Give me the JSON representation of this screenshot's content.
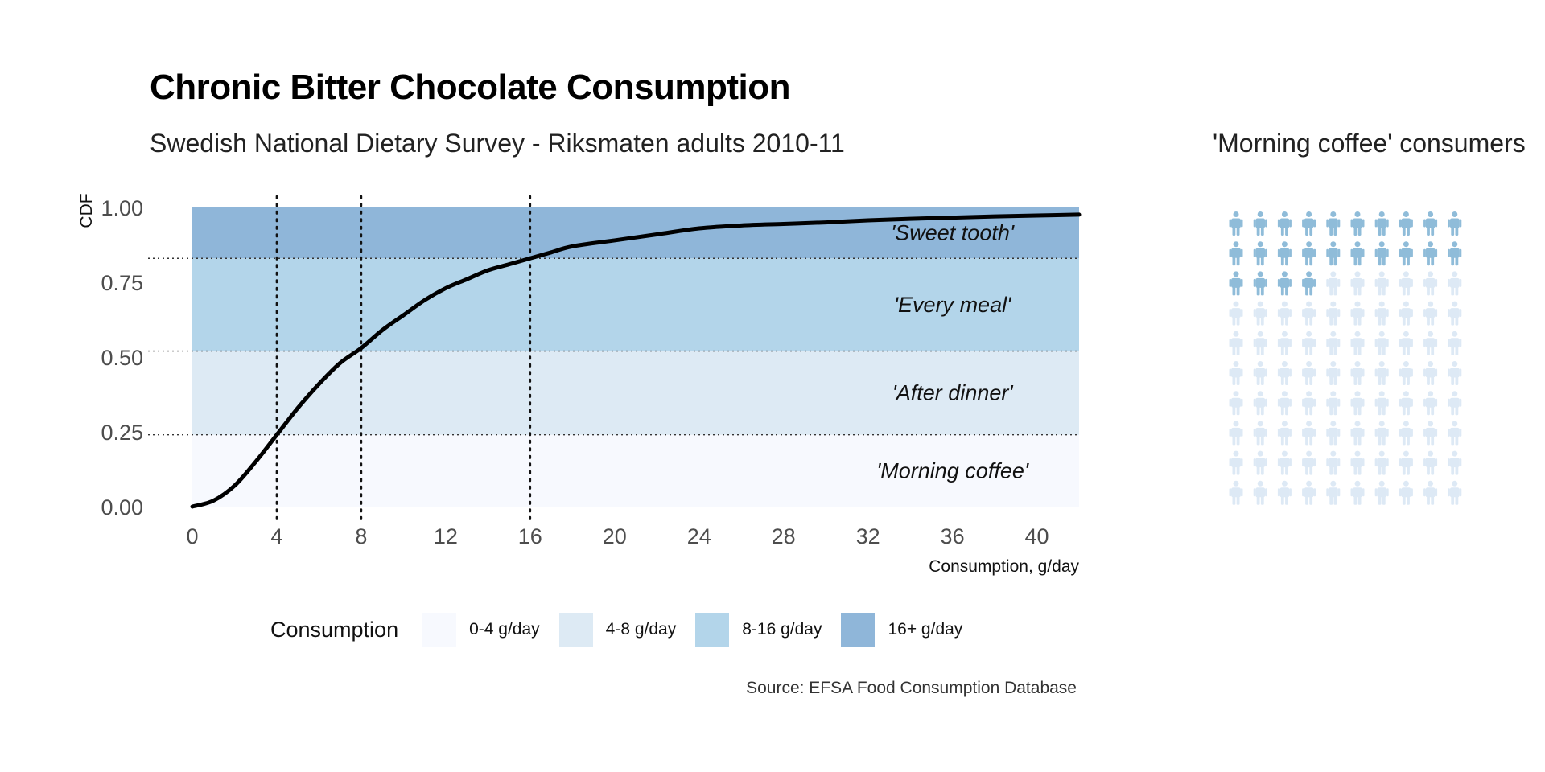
{
  "chart_data": {
    "type": "line",
    "title": "Chronic Bitter Chocolate Consumption",
    "subtitle": "Swedish National Dietary Survey - Riksmaten adults 2010-11",
    "xlabel": "Consumption, g/day",
    "ylabel": "CDF",
    "xlim": [
      0,
      42
    ],
    "ylim": [
      0,
      1
    ],
    "x_ticks": [
      0,
      4,
      8,
      12,
      16,
      20,
      24,
      28,
      32,
      36,
      40
    ],
    "y_ticks": [
      "0.00",
      "0.25",
      "0.50",
      "0.75",
      "1.00"
    ],
    "vlines": [
      4,
      8,
      16
    ],
    "hlines": [
      0.24,
      0.52,
      0.83
    ],
    "bands": [
      {
        "from": 0.0,
        "to": 0.24,
        "label": "'Morning coffee'",
        "color": "#f7f9fe"
      },
      {
        "from": 0.24,
        "to": 0.52,
        "label": "'After dinner'",
        "color": "#ddeaf4"
      },
      {
        "from": 0.52,
        "to": 0.83,
        "label": "'Every meal'",
        "color": "#b3d5ea"
      },
      {
        "from": 0.83,
        "to": 1.0,
        "label": "'Sweet tooth'",
        "color": "#8fb6d9"
      }
    ],
    "series": [
      {
        "x": [
          0,
          1,
          2,
          3,
          4,
          5,
          6,
          7,
          8,
          9,
          10,
          11,
          12,
          13,
          14,
          15,
          16,
          17,
          18,
          20,
          22,
          24,
          26,
          28,
          30,
          32,
          34,
          36,
          38,
          40,
          42
        ],
        "y": [
          0.0,
          0.02,
          0.07,
          0.15,
          0.24,
          0.33,
          0.41,
          0.48,
          0.53,
          0.59,
          0.64,
          0.69,
          0.73,
          0.76,
          0.79,
          0.81,
          0.83,
          0.85,
          0.87,
          0.89,
          0.91,
          0.93,
          0.94,
          0.945,
          0.95,
          0.957,
          0.962,
          0.966,
          0.97,
          0.973,
          0.976
        ],
        "color": "#000000"
      }
    ],
    "legend": {
      "title": "Consumption",
      "placement": "bottom",
      "items": [
        {
          "label": "0-4 g/day",
          "color": "#f7f9fe"
        },
        {
          "label": "4-8 g/day",
          "color": "#ddeaf4"
        },
        {
          "label": "8-16 g/day",
          "color": "#b3d5ea"
        },
        {
          "label": "16+ g/day",
          "color": "#8fb6d9"
        }
      ]
    },
    "source": "Source: EFSA Food Consumption Database"
  },
  "waffle": {
    "title": "'Morning coffee' consumers",
    "rows": 10,
    "cols": 10,
    "row_counts": [
      10,
      10,
      4,
      0,
      0,
      0,
      0,
      0,
      0,
      0
    ],
    "highlight_color": "#8fbcd9",
    "base_color": "#dde9f5"
  }
}
